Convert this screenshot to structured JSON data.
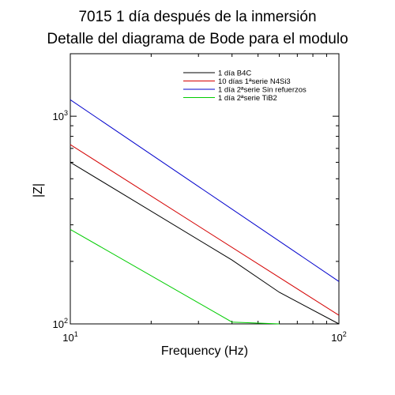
{
  "chart_data": {
    "type": "line",
    "title": "7015 1 día después de la inmersión",
    "subtitle": "Detalle del diagrama de Bode para el modulo",
    "xlabel": "Frequency (Hz)",
    "ylabel": "|Z|",
    "x_scale": "log",
    "y_scale": "log",
    "xlim": [
      10,
      100
    ],
    "ylim": [
      100,
      2000
    ],
    "x_ticks": [
      {
        "base": "10",
        "exp": "1",
        "value": 10
      },
      {
        "base": "10",
        "exp": "2",
        "value": 100
      }
    ],
    "y_ticks": [
      {
        "base": "10",
        "exp": "2",
        "value": 100
      },
      {
        "base": "10",
        "exp": "3",
        "value": 1000
      }
    ],
    "grid": false,
    "legend_position": "top-right",
    "series": [
      {
        "name": "1 día B4C",
        "color": "#000000",
        "x": [
          10,
          40,
          60,
          100
        ],
        "y": [
          600,
          203,
          142,
          100
        ]
      },
      {
        "name": "10 días 1ªserie N4Si3",
        "color": "#d40000",
        "x": [
          10,
          100
        ],
        "y": [
          730,
          110
        ]
      },
      {
        "name": "1 día 2ªserie Sin refuerzos",
        "color": "#0000cc",
        "x": [
          10,
          100
        ],
        "y": [
          1200,
          160
        ]
      },
      {
        "name": "1 día 2ªserie TiB2",
        "color": "#00cc00",
        "x": [
          10,
          40,
          60
        ],
        "y": [
          285,
          102,
          100
        ]
      }
    ]
  }
}
